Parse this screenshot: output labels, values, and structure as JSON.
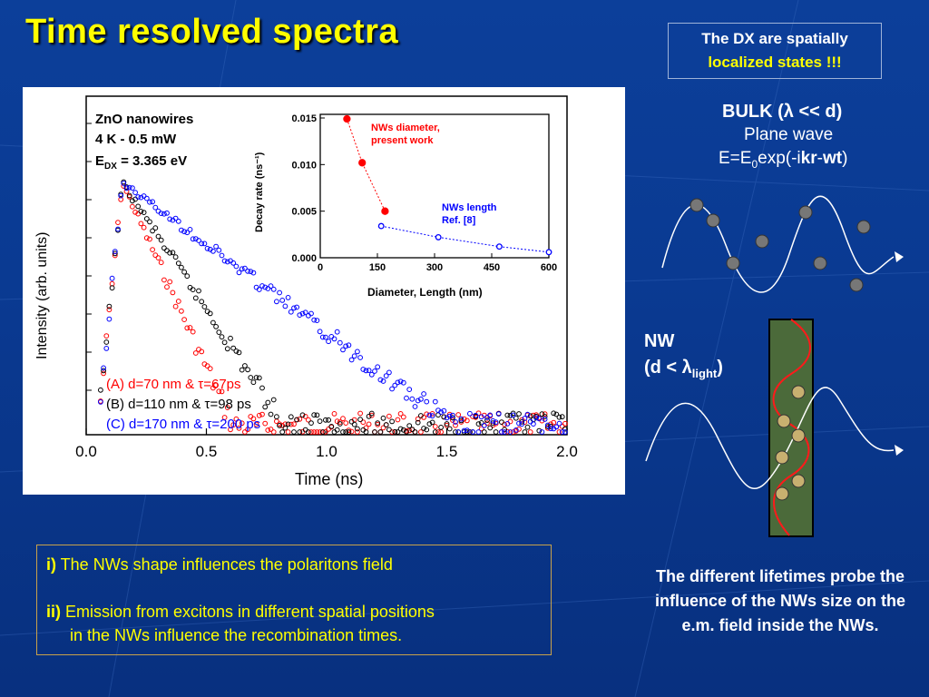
{
  "slide": {
    "title": "Time resolved spectra",
    "note": {
      "line1": "The DX are spatially",
      "line2": "localized states !!!"
    },
    "bulk": {
      "title": "BULK (λ << d)",
      "subtitle": "Plane wave",
      "eq_prefix": "E=E",
      "eq_sub": "0",
      "eq_mid": "exp(-i",
      "eq_bold1": "kr",
      "eq_dash": "-",
      "eq_bold2": "wt",
      "eq_close": ")"
    },
    "nw": {
      "line1": "NW",
      "line2_prefix": "(d < λ",
      "line2_sub": "light",
      "line2_suffix": ")"
    },
    "right_text": "The different lifetimes probe the influence of the NWs size on the e.m. field inside the NWs.",
    "bottom_box": {
      "item1_marker": "i)",
      "item1_text": " The NWs shape influences the polaritons field",
      "item2_marker": "ii)",
      "item2_text_line1": " Emission from excitons in different spatial positions",
      "item2_text_line2": "in the NWs  influence the  recombination times."
    },
    "colors": {
      "title": "#ffff00",
      "background": "#0a3a92",
      "panel": "#ffffff",
      "red": "#ff0000",
      "blue": "#0000ff",
      "black": "#000000"
    }
  },
  "chart_data": [
    {
      "type": "scatter",
      "title": "",
      "xlabel": "Time (ns)",
      "ylabel": "Intensity (arb. units)",
      "xlim": [
        0.0,
        2.0
      ],
      "x_ticks": [
        "0.0",
        "0.5",
        "1.0",
        "1.5",
        "2.0"
      ],
      "y_scale": "log",
      "annotation": {
        "line1": "ZnO nanowires",
        "line2": "4 K - 0.5 mW",
        "line3_prefix": "E",
        "line3_sub": "DX",
        "line3_suffix": " = 3.365 eV"
      },
      "series": [
        {
          "name": "(A) d=70 nm & τ=67ps",
          "color": "#ff0000",
          "tau_ns": 0.067
        },
        {
          "name": "(B) d=110 nm & τ=98 ps",
          "color": "#000000",
          "tau_ns": 0.098
        },
        {
          "name": "(C) d=170 nm & τ=200 ps",
          "color": "#0000ff",
          "tau_ns": 0.2
        }
      ]
    },
    {
      "type": "scatter",
      "title": "",
      "xlabel": "Diameter, Length (nm)",
      "ylabel": "Decay rate (ns⁻¹)",
      "xlim": [
        0,
        600
      ],
      "ylim": [
        0.0,
        0.015
      ],
      "x_ticks": [
        "0",
        "150",
        "300",
        "450",
        "600"
      ],
      "y_ticks": [
        "0.000",
        "0.005",
        "0.010",
        "0.015"
      ],
      "series": [
        {
          "name": "NWs diameter, present work",
          "color": "#ff0000",
          "x": [
            70,
            110,
            170
          ],
          "y": [
            0.0149,
            0.0102,
            0.005
          ]
        },
        {
          "name": "NWs length Ref. [8]",
          "color": "#0000ff",
          "x": [
            160,
            310,
            470,
            610
          ],
          "y": [
            0.0034,
            0.0022,
            0.0012,
            0.0006
          ]
        }
      ],
      "legend_labels": {
        "red_line1": "NWs diameter,",
        "red_line2": "present work",
        "blue_line1": "NWs length",
        "blue_line2": "Ref. [8]"
      }
    }
  ]
}
